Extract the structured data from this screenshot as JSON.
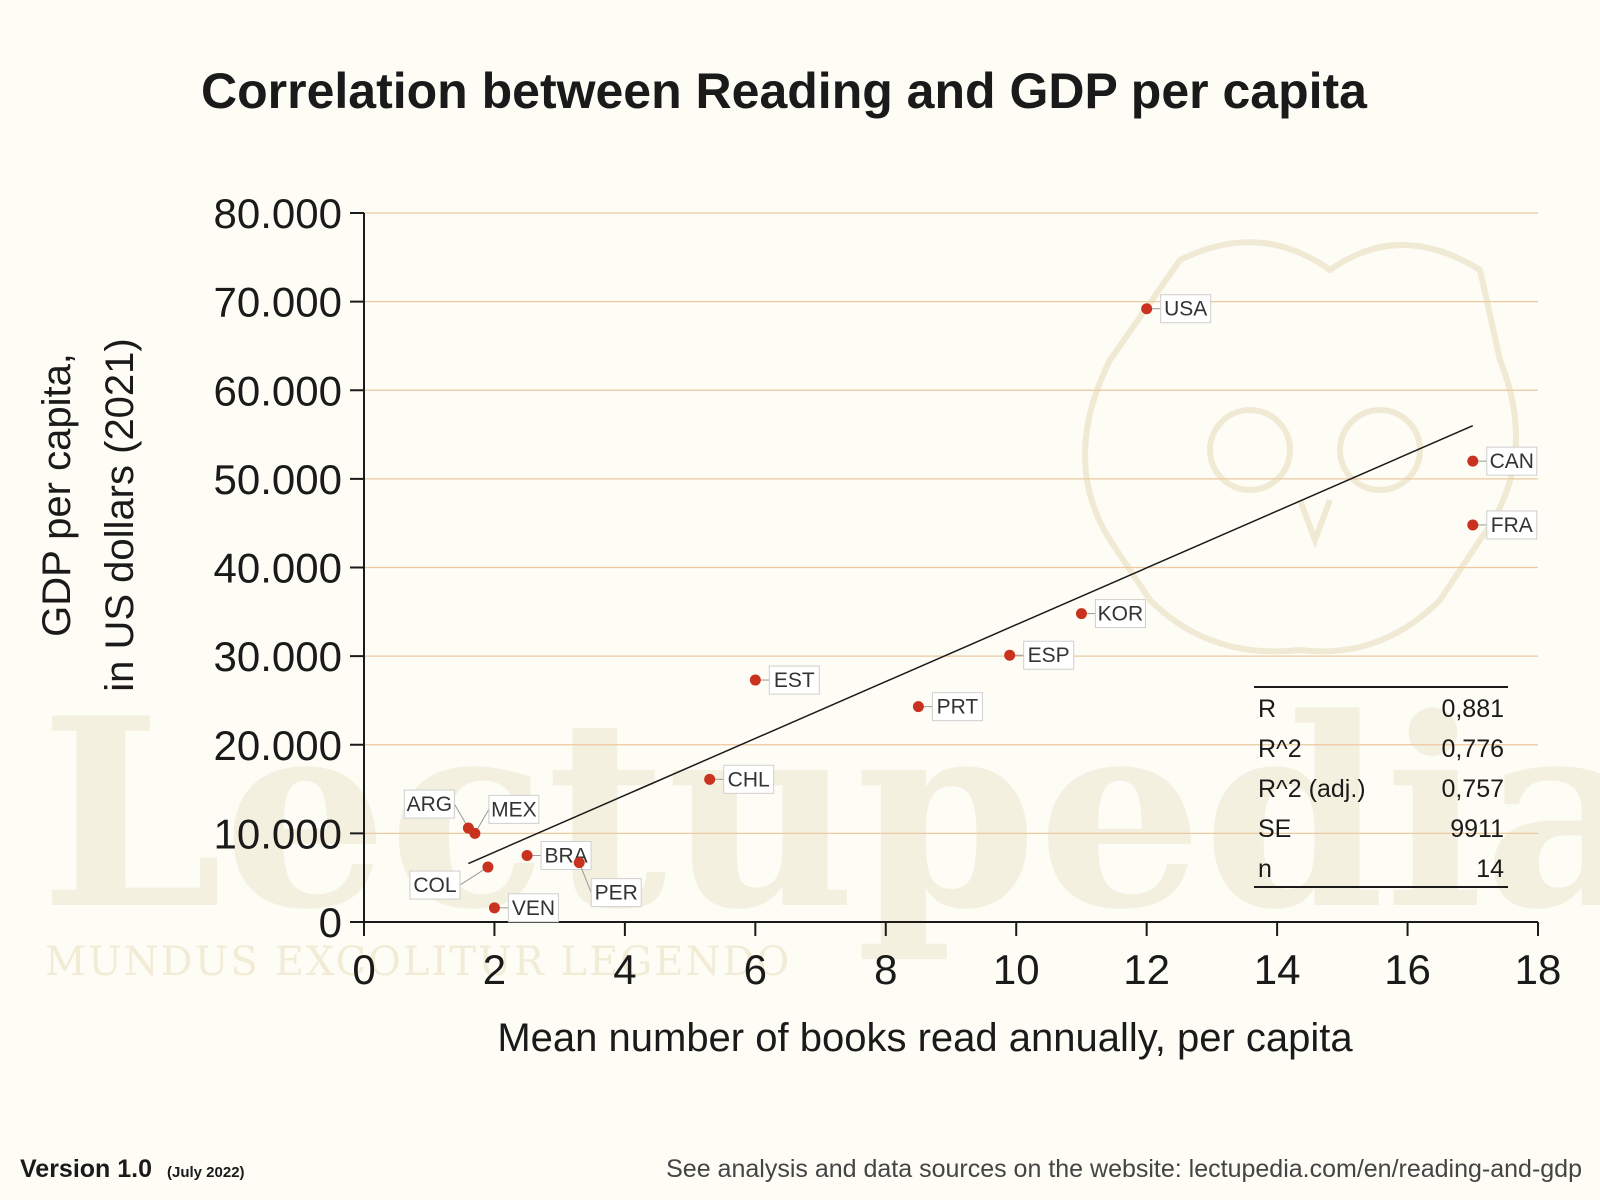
{
  "watermark": {
    "text": "Lectupedia",
    "motto": "MUNDUS EXCOLITUR LEGENDO"
  },
  "footer": {
    "version": "Version 1.0",
    "date": "(July 2022)",
    "source": "See analysis and data sources on the website:  lectupedia.com/en/reading-and-gdp"
  },
  "colors": {
    "point": "#c8321e",
    "grid": "#ecc9a0",
    "axis": "#1a1a1a",
    "trend": "#1a1a1a"
  },
  "stats": {
    "rows": [
      {
        "label": "R",
        "value": "0,881"
      },
      {
        "label": "R^2",
        "value": "0,776"
      },
      {
        "label": "R^2 (adj.)",
        "value": "0,757"
      },
      {
        "label": "SE",
        "value": "9911"
      },
      {
        "label": "n",
        "value": "14"
      }
    ]
  },
  "chart_data": {
    "type": "scatter",
    "title": "Correlation between Reading and GDP per capita",
    "xlabel": "Mean number of books read annually, per capita",
    "ylabel_lines": [
      "GDP per capita,",
      "in US dollars (2021)"
    ],
    "xlim": [
      0,
      18
    ],
    "ylim": [
      0,
      80000
    ],
    "x_ticks": [
      0,
      2,
      4,
      6,
      8,
      10,
      12,
      14,
      16,
      18
    ],
    "x_tick_labels": [
      "0",
      "2",
      "4",
      "6",
      "8",
      "10",
      "12",
      "14",
      "16",
      "18"
    ],
    "y_ticks": [
      0,
      10000,
      20000,
      30000,
      40000,
      50000,
      60000,
      70000,
      80000
    ],
    "y_tick_labels": [
      "0",
      "10.000",
      "20.000",
      "30.000",
      "40.000",
      "50.000",
      "60.000",
      "70.000",
      "80.000"
    ],
    "grid": "horizontal",
    "points": [
      {
        "label": "USA",
        "x": 12.0,
        "y": 69200,
        "side": "right"
      },
      {
        "label": "CAN",
        "x": 17.0,
        "y": 52000,
        "side": "right"
      },
      {
        "label": "FRA",
        "x": 17.0,
        "y": 44800,
        "side": "right"
      },
      {
        "label": "KOR",
        "x": 11.0,
        "y": 34800,
        "side": "right"
      },
      {
        "label": "ESP",
        "x": 9.9,
        "y": 30100,
        "side": "right"
      },
      {
        "label": "EST",
        "x": 6.0,
        "y": 27300,
        "side": "right"
      },
      {
        "label": "PRT",
        "x": 8.5,
        "y": 24300,
        "side": "right"
      },
      {
        "label": "CHL",
        "x": 5.3,
        "y": 16100,
        "side": "right"
      },
      {
        "label": "ARG",
        "x": 1.6,
        "y": 10600,
        "side": "upper-left"
      },
      {
        "label": "MEX",
        "x": 1.7,
        "y": 10000,
        "side": "upper-right"
      },
      {
        "label": "BRA",
        "x": 2.5,
        "y": 7500,
        "side": "right"
      },
      {
        "label": "PER",
        "x": 3.3,
        "y": 6700,
        "side": "lower-right"
      },
      {
        "label": "COL",
        "x": 1.9,
        "y": 6200,
        "side": "lower-left"
      },
      {
        "label": "VEN",
        "x": 2.0,
        "y": 1600,
        "side": "right"
      }
    ],
    "trendline": {
      "x": [
        1.6,
        17.0
      ],
      "y": [
        6600,
        56000
      ]
    }
  }
}
